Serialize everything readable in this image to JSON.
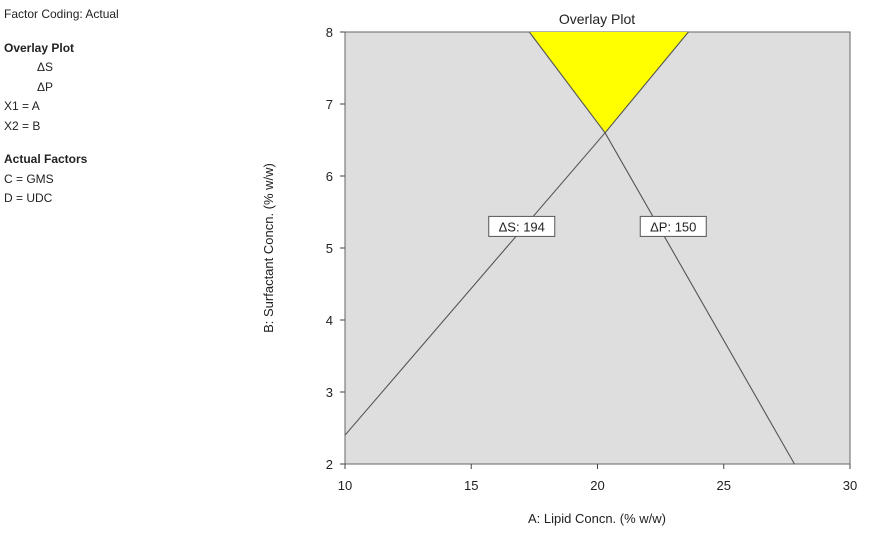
{
  "sidebar": {
    "factor_coding": "Factor Coding: Actual",
    "overlay_heading": "Overlay Plot",
    "responses": [
      "ΔS",
      "ΔP"
    ],
    "mapping": [
      "X1 = A",
      "X2 = B"
    ],
    "actual_heading": "Actual Factors",
    "actual_factors": [
      "C = GMS",
      "D = UDC"
    ]
  },
  "colors": {
    "plot_bg": "#dedede",
    "feasible": "#ffff00",
    "contour": "#555555"
  },
  "chart_data": {
    "type": "overlay",
    "title": "Overlay Plot",
    "xlabel": "A: Lipid Concn. (% w/w)",
    "ylabel": "B: Surfactant Concn. (% w/w)",
    "xlim": [
      10,
      30
    ],
    "ylim": [
      2,
      8
    ],
    "xticks": [
      10,
      15,
      20,
      25,
      30
    ],
    "yticks": [
      2,
      3,
      4,
      5,
      6,
      7,
      8
    ],
    "grid": false,
    "contours": [
      {
        "name": "ΔS",
        "label": "ΔS: 194",
        "points": [
          [
            10,
            2.4
          ],
          [
            20.3,
            6.6
          ],
          [
            23.6,
            8.0
          ]
        ],
        "label_at": [
          17.0,
          5.3
        ]
      },
      {
        "name": "ΔP",
        "label": "ΔP: 150",
        "points": [
          [
            17.3,
            8.0
          ],
          [
            20.3,
            6.6
          ],
          [
            27.8,
            2.0
          ]
        ],
        "label_at": [
          23.0,
          5.3
        ]
      }
    ],
    "feasible_region": [
      [
        17.3,
        8.0
      ],
      [
        23.6,
        8.0
      ],
      [
        20.3,
        6.6
      ]
    ]
  }
}
